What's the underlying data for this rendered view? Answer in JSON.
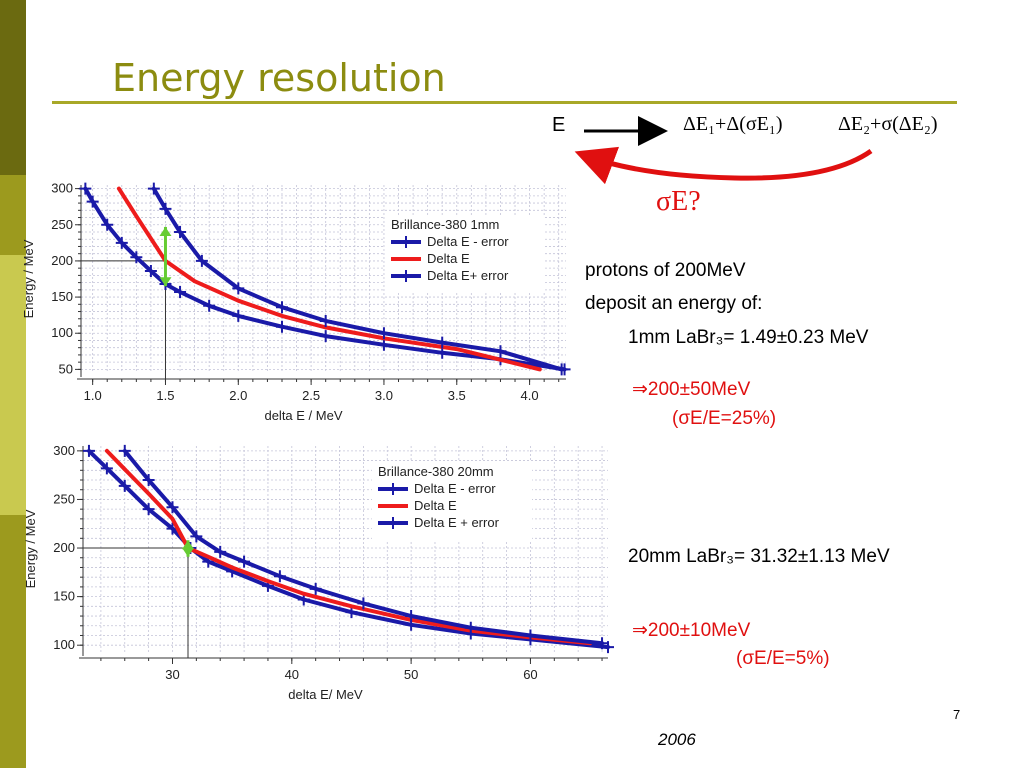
{
  "slide": {
    "title": "Energy resolution",
    "page_number": "7",
    "year": "2006",
    "colors": {
      "title": "#8c8c10",
      "accent_red": "#e01010",
      "series_blue": "#1a1aa8",
      "series_red": "#ee1c1c",
      "marker_green": "#66cc33"
    }
  },
  "diagram": {
    "e_label": "E",
    "formula1": "ΔE₁+Δ(σE₁)",
    "formula2": "ΔE₂+σ(ΔE₂)",
    "sigma_question": "σE?"
  },
  "notes": {
    "line1": "protons of 200MeV",
    "line2": "deposit an energy of:",
    "line3": "1mm LaBr₃= 1.49±0.23 MeV",
    "result1a": "⇒200±50MeV",
    "result1b": "(σE/E=25%)",
    "line4": "20mm LaBr₃= 31.32±1.13 MeV",
    "result2a": "⇒200±10MeV",
    "result2b": "(σE/E=5%)"
  },
  "chart_data": [
    {
      "type": "line",
      "xlabel": "delta E / MeV",
      "ylabel": "Energy / MeV",
      "xlim": [
        0.92,
        4.25
      ],
      "ylim": [
        45,
        305
      ],
      "xticks": [
        1.0,
        1.5,
        2.0,
        2.5,
        3.0,
        3.5,
        4.0
      ],
      "xtick_labels": [
        "1.0",
        "1.5",
        "2.0",
        "2.5",
        "3.0",
        "3.5",
        "4.0"
      ],
      "yticks": [
        50,
        100,
        150,
        200,
        250,
        300
      ],
      "ytick_labels": [
        "50",
        "100",
        "150",
        "200",
        "250",
        "300"
      ],
      "grid": true,
      "legend": {
        "title": "Brillance-380   1mm",
        "position": "top-right"
      },
      "series": [
        {
          "name": "Delta E - error",
          "color": "#1a1aa8",
          "markers": true,
          "x": [
            0.95,
            1.0,
            1.1,
            1.2,
            1.3,
            1.4,
            1.5,
            1.6,
            1.8,
            2.0,
            2.3,
            2.6,
            3.0,
            3.4,
            3.8,
            4.24
          ],
          "y": [
            300,
            282,
            250,
            225,
            205,
            186,
            168,
            157,
            138,
            124,
            109,
            96,
            84,
            73,
            64,
            50
          ]
        },
        {
          "name": "Delta E",
          "color": "#ee1c1c",
          "markers": false,
          "x": [
            1.18,
            1.3,
            1.5,
            1.7,
            2.0,
            2.3,
            2.6,
            3.0,
            3.5,
            4.07
          ],
          "y": [
            300,
            262,
            200,
            172,
            145,
            124,
            108,
            93,
            78,
            50
          ]
        },
        {
          "name": "Delta E+ error",
          "color": "#1a1aa8",
          "markers": true,
          "x": [
            1.42,
            1.5,
            1.6,
            1.75,
            2.0,
            2.3,
            2.6,
            3.0,
            3.4,
            3.8,
            4.22
          ],
          "y": [
            300,
            272,
            240,
            200,
            162,
            136,
            117,
            100,
            87,
            75,
            50
          ]
        }
      ],
      "markers": {
        "crosshair": [
          1.5,
          200
        ],
        "error_arrow_x": 1.5,
        "error_arrow_y": [
          165,
          247
        ]
      }
    },
    {
      "type": "line",
      "xlabel": "delta E/ MeV",
      "ylabel": "Energy / MeV",
      "xlim": [
        22.5,
        66.5
      ],
      "ylim": [
        93,
        305
      ],
      "xticks": [
        30,
        40,
        50,
        60
      ],
      "xtick_labels": [
        "30",
        "40",
        "50",
        "60"
      ],
      "yticks": [
        100,
        150,
        200,
        250,
        300
      ],
      "ytick_labels": [
        "100",
        "150",
        "200",
        "250",
        "300"
      ],
      "grid": true,
      "legend": {
        "title": "Brillance-380 20mm",
        "position": "top-right"
      },
      "series": [
        {
          "name": "Delta E - error",
          "color": "#1a1aa8",
          "markers": true,
          "x": [
            23.0,
            24.5,
            26.0,
            28.0,
            30.0,
            31.5,
            33.0,
            35.0,
            38.0,
            41.0,
            45.0,
            50.0,
            55.0,
            60.0,
            66.5
          ],
          "y": [
            300,
            282,
            264,
            240,
            220,
            200,
            186,
            176,
            161,
            147,
            134,
            121,
            112,
            106,
            98
          ]
        },
        {
          "name": "Delta E",
          "color": "#ee1c1c",
          "markers": false,
          "x": [
            24.5,
            26.0,
            28.0,
            30.0,
            31.3,
            33.0,
            35.0,
            38.0,
            41.0,
            45.0,
            50.0,
            55.0,
            60.0,
            65.0
          ],
          "y": [
            300,
            281,
            256,
            230,
            200,
            191,
            180,
            166,
            153,
            140,
            126,
            115,
            108,
            102
          ]
        },
        {
          "name": "Delta E + error",
          "color": "#1a1aa8",
          "markers": true,
          "x": [
            26.0,
            28.0,
            30.0,
            32.0,
            34.0,
            36.0,
            39.0,
            42.0,
            46.0,
            50.0,
            55.0,
            60.0,
            66.0
          ],
          "y": [
            300,
            270,
            242,
            212,
            196,
            186,
            171,
            158,
            143,
            130,
            118,
            110,
            102
          ]
        }
      ],
      "markers": {
        "crosshair": [
          31.3,
          200
        ],
        "error_arrow_x": 31.3,
        "error_arrow_y": [
          191,
          208
        ]
      }
    }
  ]
}
